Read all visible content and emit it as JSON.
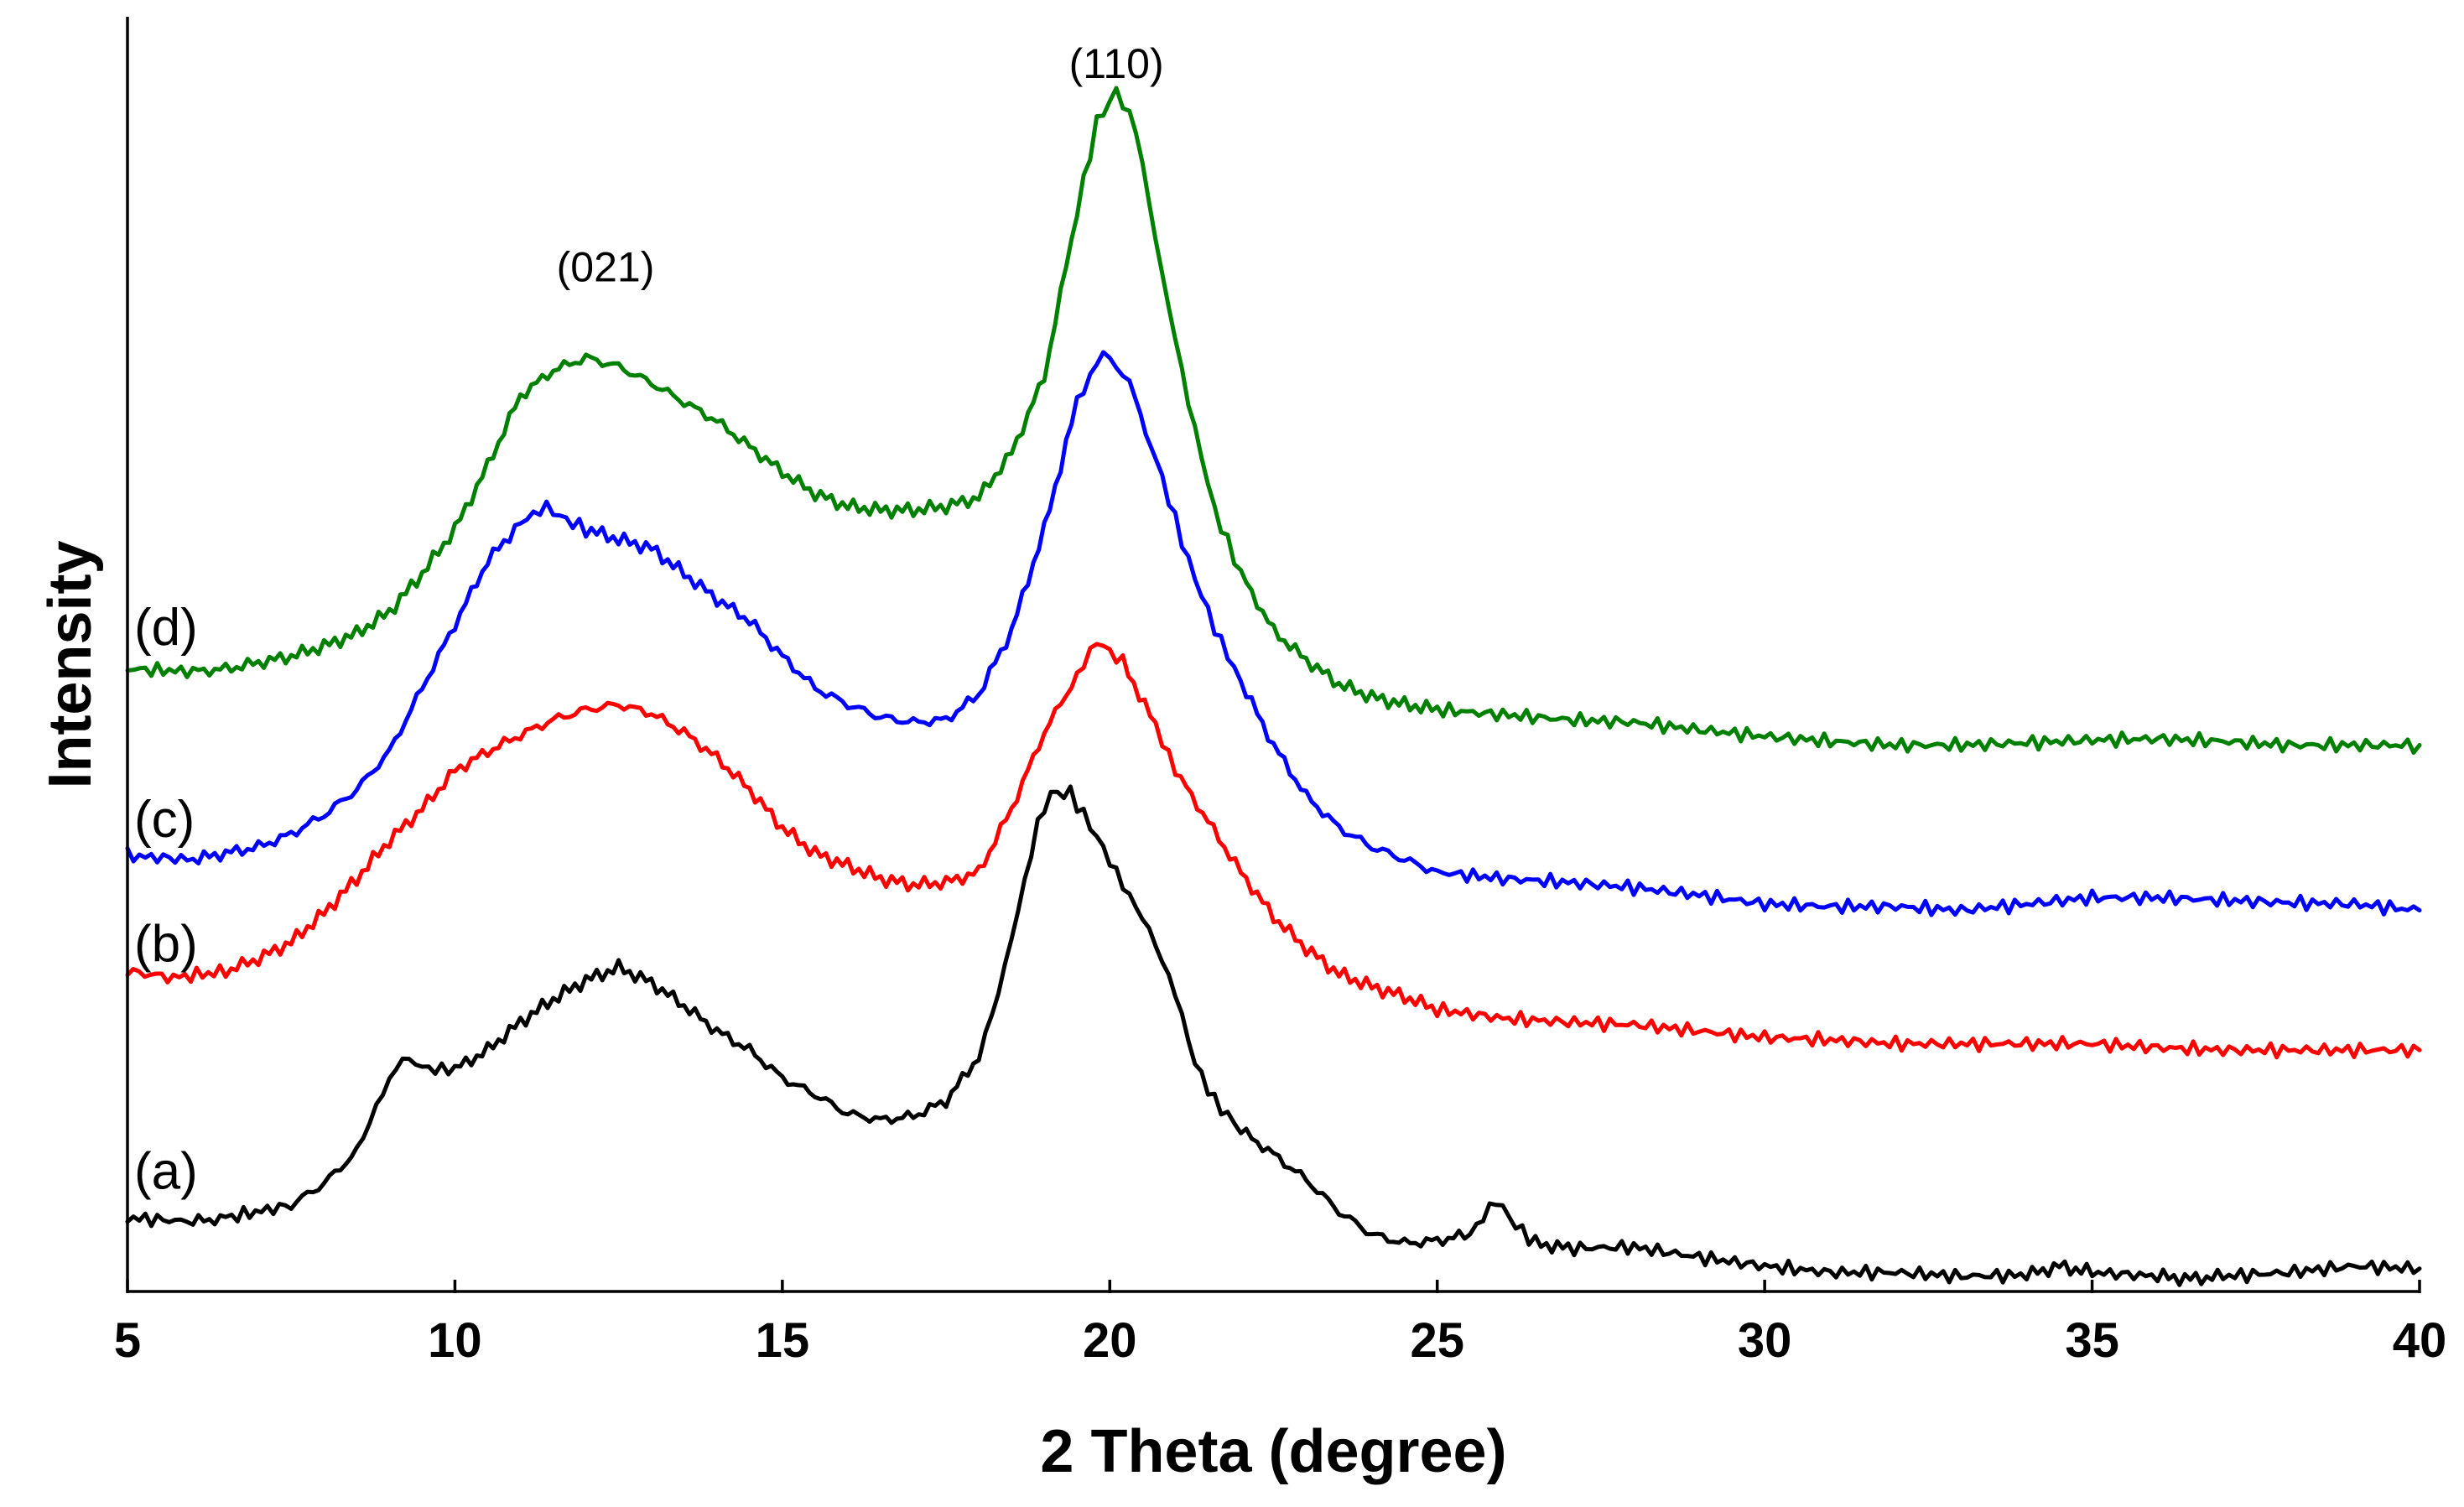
{
  "chart_data": {
    "type": "line",
    "title": "",
    "xlabel": "2 Theta (degree)",
    "ylabel": "Intensity",
    "xlim": [
      5,
      40
    ],
    "ylim": [
      0,
      1
    ],
    "grid": false,
    "y_ticks_shown": false,
    "x_ticks": [
      5,
      10,
      15,
      20,
      25,
      30,
      35,
      40
    ],
    "x_tick_labels": [
      "5",
      "10",
      "15",
      "20",
      "25",
      "30",
      "35",
      "40"
    ],
    "annotations": [
      {
        "text": "(021)",
        "x": 12.3,
        "y": 0.795
      },
      {
        "text": "(110)",
        "x": 20.1,
        "y": 0.955
      }
    ],
    "series": [
      {
        "name": "(a)",
        "label_y": 0.094,
        "color": "#000000",
        "x": [
          5,
          6,
          6.5,
          7.5,
          8,
          8.5,
          8.9,
          9.2,
          9.6,
          10,
          10.5,
          11,
          11.5,
          12,
          12.5,
          13,
          13.5,
          14,
          14.5,
          15,
          15.5,
          16,
          16.5,
          17,
          17.5,
          18,
          18.3,
          18.6,
          18.9,
          19.1,
          19.4,
          19.8,
          20.2,
          20.6,
          21,
          21.3,
          21.6,
          22,
          22.5,
          23,
          23.5,
          24,
          24.5,
          25,
          25.5,
          25.9,
          26.2,
          26.5,
          27,
          28,
          29,
          30,
          31,
          32,
          33,
          34,
          34.5,
          35,
          36,
          36.5,
          37,
          38,
          39,
          40
        ],
        "y": [
          0.058,
          0.055,
          0.058,
          0.068,
          0.085,
          0.11,
          0.157,
          0.184,
          0.175,
          0.175,
          0.19,
          0.212,
          0.23,
          0.245,
          0.255,
          0.243,
          0.225,
          0.205,
          0.19,
          0.168,
          0.155,
          0.14,
          0.135,
          0.138,
          0.15,
          0.185,
          0.235,
          0.3,
          0.368,
          0.392,
          0.392,
          0.358,
          0.32,
          0.285,
          0.235,
          0.18,
          0.15,
          0.127,
          0.108,
          0.088,
          0.063,
          0.045,
          0.038,
          0.04,
          0.045,
          0.072,
          0.052,
          0.038,
          0.034,
          0.035,
          0.027,
          0.02,
          0.015,
          0.015,
          0.012,
          0.013,
          0.02,
          0.015,
          0.012,
          0.01,
          0.012,
          0.015,
          0.02,
          0.018
        ]
      },
      {
        "name": "(b)",
        "label_y": 0.273,
        "color": "#ff0000",
        "x": [
          5,
          5.7,
          6.5,
          7,
          7.5,
          8,
          8.5,
          9,
          9.5,
          10,
          10.5,
          11,
          11.5,
          12,
          12.5,
          13,
          13.5,
          14,
          14.5,
          15,
          15.5,
          16,
          16.5,
          17,
          17.5,
          18,
          18.5,
          19,
          19.5,
          19.8,
          20.2,
          20.7,
          21,
          21.5,
          22,
          22.5,
          23,
          23.5,
          24,
          24.5,
          25,
          26,
          27,
          28,
          29,
          30,
          31,
          32,
          33,
          34,
          35,
          36,
          37,
          38,
          39,
          40
        ],
        "y": [
          0.252,
          0.247,
          0.252,
          0.262,
          0.275,
          0.298,
          0.325,
          0.355,
          0.38,
          0.41,
          0.425,
          0.438,
          0.45,
          0.458,
          0.462,
          0.455,
          0.44,
          0.42,
          0.395,
          0.365,
          0.345,
          0.335,
          0.325,
          0.32,
          0.322,
          0.33,
          0.38,
          0.44,
          0.485,
          0.512,
          0.495,
          0.445,
          0.41,
          0.37,
          0.33,
          0.295,
          0.27,
          0.25,
          0.24,
          0.232,
          0.222,
          0.215,
          0.212,
          0.21,
          0.205,
          0.2,
          0.198,
          0.195,
          0.195,
          0.195,
          0.195,
          0.192,
          0.19,
          0.19,
          0.19,
          0.19
        ]
      },
      {
        "name": "(c)",
        "label_y": 0.371,
        "color": "#0000ff",
        "x": [
          5,
          6,
          6.5,
          7,
          7.5,
          8,
          8.5,
          9,
          9.5,
          10,
          10.5,
          11,
          11.4,
          11.6,
          12,
          12.5,
          13,
          13.5,
          14,
          14.5,
          15,
          15.5,
          16,
          16.5,
          17,
          17.5,
          18,
          18.5,
          19,
          19.5,
          19.9,
          20.3,
          20.8,
          21.2,
          21.6,
          22,
          22.5,
          23,
          23.5,
          24,
          24.5,
          25,
          26,
          27,
          28,
          29,
          30,
          31,
          32,
          33,
          34,
          35,
          36,
          37,
          38,
          39,
          40
        ],
        "y": [
          0.343,
          0.34,
          0.345,
          0.35,
          0.36,
          0.375,
          0.395,
          0.425,
          0.475,
          0.525,
          0.575,
          0.605,
          0.618,
          0.61,
          0.6,
          0.592,
          0.585,
          0.565,
          0.545,
          0.528,
          0.5,
          0.475,
          0.462,
          0.452,
          0.448,
          0.45,
          0.47,
          0.52,
          0.6,
          0.7,
          0.74,
          0.715,
          0.64,
          0.575,
          0.522,
          0.48,
          0.43,
          0.39,
          0.365,
          0.35,
          0.34,
          0.33,
          0.325,
          0.322,
          0.318,
          0.312,
          0.305,
          0.303,
          0.303,
          0.3,
          0.305,
          0.31,
          0.31,
          0.308,
          0.306,
          0.305,
          0.3
        ]
      },
      {
        "name": "(d)",
        "label_y": 0.522,
        "color": "#008000",
        "x": [
          5,
          6,
          6.5,
          7,
          7.5,
          8,
          8.5,
          9,
          9.5,
          10,
          10.5,
          11,
          11.5,
          12,
          12.5,
          13,
          13.5,
          14,
          14.5,
          15,
          15.5,
          16,
          16.5,
          17,
          17.5,
          18,
          18.5,
          19,
          19.5,
          19.8,
          20.1,
          20.4,
          20.8,
          21.2,
          21.6,
          22,
          22.5,
          23,
          23.5,
          24,
          24.5,
          25,
          26,
          27,
          28,
          29,
          30,
          31,
          32,
          33,
          34,
          35,
          36,
          37,
          38,
          39,
          40
        ],
        "y": [
          0.49,
          0.488,
          0.49,
          0.495,
          0.5,
          0.508,
          0.518,
          0.535,
          0.565,
          0.6,
          0.65,
          0.705,
          0.725,
          0.735,
          0.728,
          0.715,
          0.7,
          0.685,
          0.665,
          0.645,
          0.628,
          0.618,
          0.615,
          0.615,
          0.618,
          0.625,
          0.66,
          0.72,
          0.85,
          0.92,
          0.945,
          0.915,
          0.8,
          0.7,
          0.615,
          0.565,
          0.52,
          0.497,
          0.478,
          0.468,
          0.462,
          0.458,
          0.454,
          0.45,
          0.448,
          0.442,
          0.437,
          0.433,
          0.43,
          0.43,
          0.432,
          0.434,
          0.435,
          0.433,
          0.43,
          0.43,
          0.43
        ]
      }
    ]
  }
}
